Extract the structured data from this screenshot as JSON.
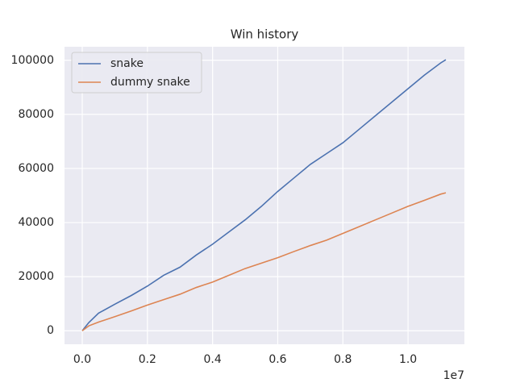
{
  "chart_data": {
    "type": "line",
    "title": "Win history",
    "x": [
      0,
      200000,
      500000,
      1000000,
      1500000,
      2000000,
      2500000,
      3000000,
      3500000,
      4000000,
      4500000,
      5000000,
      5500000,
      6000000,
      6500000,
      7000000,
      7500000,
      8000000,
      8500000,
      9000000,
      9500000,
      10000000,
      10500000,
      11000000,
      11160000
    ],
    "series": [
      {
        "name": "snake",
        "color": "#4c72b0",
        "values": [
          0,
          3000,
          6500,
          9800,
          13000,
          16500,
          20500,
          23500,
          28000,
          32000,
          36500,
          41000,
          46000,
          51500,
          56500,
          61500,
          65500,
          69500,
          74500,
          79500,
          84500,
          89500,
          94500,
          99000,
          100200
        ]
      },
      {
        "name": "dummy snake",
        "color": "#dd8452",
        "values": [
          0,
          1800,
          3200,
          5200,
          7300,
          9500,
          11500,
          13500,
          16000,
          18000,
          20500,
          23000,
          25000,
          27000,
          29300,
          31500,
          33500,
          36000,
          38500,
          41000,
          43500,
          46000,
          48200,
          50500,
          51000
        ]
      }
    ],
    "xlim": [
      -545000,
      11730000
    ],
    "xticks": [
      {
        "value": 0,
        "label": "0.0"
      },
      {
        "value": 2000000,
        "label": "0.2"
      },
      {
        "value": 4000000,
        "label": "0.4"
      },
      {
        "value": 6000000,
        "label": "0.6"
      },
      {
        "value": 8000000,
        "label": "0.8"
      },
      {
        "value": 10000000,
        "label": "1.0"
      }
    ],
    "x_offset_label": "1e7",
    "ylim": [
      -5000,
      105000
    ],
    "yticks": [
      0,
      20000,
      40000,
      60000,
      80000,
      100000
    ],
    "grid": true,
    "legend": "upper-left",
    "background": "#eaeaf2"
  }
}
